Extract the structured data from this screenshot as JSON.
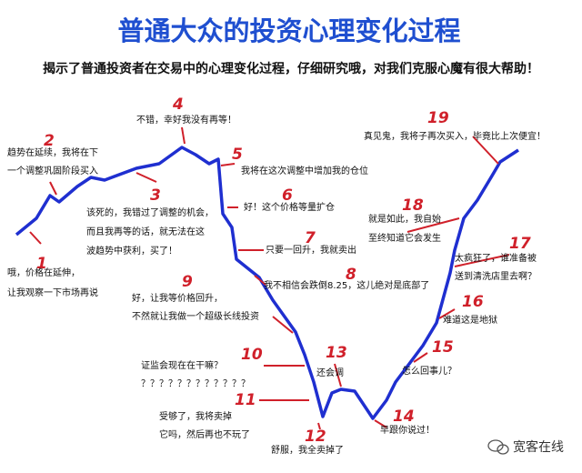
{
  "header": {
    "title": "普通大众的投资心理变化过程",
    "subtitle": "揭示了普通投资者在交易中的心理变化过程，仔细研究哦，对我们克服心魔有很大帮助！"
  },
  "stages": [
    {
      "number": "1",
      "lines": [
        "哦，价格在延伸，",
        "让我观察一下市场再说"
      ]
    },
    {
      "number": "2",
      "lines": [
        "趋势在延续，我将在下",
        "一个调整巩固阶段买入"
      ]
    },
    {
      "number": "3",
      "lines": [
        "该死的，我错过了调整的机会，",
        "而且我再等的话，就无法在这",
        "波趋势中获利，买了！"
      ]
    },
    {
      "number": "4",
      "lines": [
        "不错，幸好我没有再等！"
      ]
    },
    {
      "number": "5",
      "lines": [
        "我将在这次调整中增加我的仓位"
      ]
    },
    {
      "number": "6",
      "lines": [
        "好！这个价格等量扩仓"
      ]
    },
    {
      "number": "7",
      "lines": [
        "只要一回升，我就卖出"
      ]
    },
    {
      "number": "8",
      "lines": [
        "我不相信会跌倒8.25，这儿绝对是底部了"
      ]
    },
    {
      "number": "9",
      "lines": [
        "好，让我等价格回升，",
        "不然就让我做一个超级长线投资"
      ]
    },
    {
      "number": "10",
      "lines": [
        "证监会现在在干嘛？",
        "？？？？？？？？？？？？"
      ]
    },
    {
      "number": "11",
      "lines": [
        "受够了，我将卖掉",
        "它吗，然后再也不玩了"
      ]
    },
    {
      "number": "12",
      "lines": [
        "舒服，我全卖掉了"
      ]
    },
    {
      "number": "13",
      "lines": [
        "还会调"
      ]
    },
    {
      "number": "14",
      "lines": [
        "早跟你说过！"
      ]
    },
    {
      "number": "15",
      "lines": [
        "怎么回事儿？"
      ]
    },
    {
      "number": "16",
      "lines": [
        "难道这是地狱"
      ]
    },
    {
      "number": "17",
      "lines": [
        "太疯狂了，谁准备被",
        "送到清洗店里去啊？"
      ]
    },
    {
      "number": "18",
      "lines": [
        "就是如此，我自始",
        "至终知道它会发生"
      ]
    },
    {
      "number": "19",
      "lines": [
        "真见鬼，我将子再次买入，毕竟比上次便宜！"
      ]
    }
  ],
  "watermark": "宽客在线"
}
